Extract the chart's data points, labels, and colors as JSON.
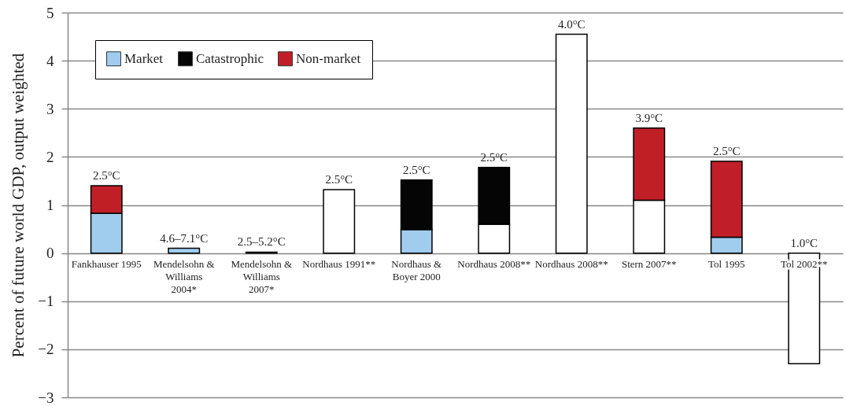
{
  "chart_data": {
    "type": "bar",
    "stacked": true,
    "ylabel": "Percent of future world GDP, output weighted",
    "categories": [
      "Fankhauser 1995",
      "Mendelsohn & Williams 2004*",
      "Mendelsohn & Williams 2007*",
      "Nordhaus 1991**",
      "Nordhaus & Boyer 2000",
      "Nordhaus 2008**",
      "Nordhaus 2008**",
      "Stern 2007**",
      "Tol 1995",
      "Tol 2002**"
    ],
    "series": [
      {
        "name": "Market",
        "color": "#a0cdee",
        "values": [
          0.83,
          0.1,
          0.02,
          null,
          0.49,
          null,
          null,
          null,
          0.33,
          null
        ]
      },
      {
        "color": "#ffffff",
        "values": [
          null,
          null,
          null,
          1.32,
          null,
          0.6,
          4.55,
          1.1,
          null,
          -2.3
        ]
      },
      {
        "name": "Catastrophic",
        "color": "#050505",
        "values": [
          null,
          null,
          null,
          null,
          1.03,
          1.18,
          null,
          null,
          null,
          null
        ]
      },
      {
        "name": "Non-market",
        "color": "#c01f27",
        "values": [
          0.57,
          null,
          null,
          null,
          null,
          null,
          null,
          1.5,
          1.58,
          null
        ]
      }
    ],
    "ylim": [
      -3,
      5
    ],
    "yticks": [
      -3,
      -2,
      -1,
      0,
      1,
      2,
      3,
      4,
      5
    ],
    "grid": "y",
    "legend": "top left",
    "annotations": [
      "2.5°C",
      "4.6–7.1°C",
      "2.5–5.2°C",
      "2.5°C",
      "2.5°C",
      "2.5°C",
      "4.0°C",
      "3.9°C",
      "2.5°C",
      "1.0°C"
    ]
  }
}
